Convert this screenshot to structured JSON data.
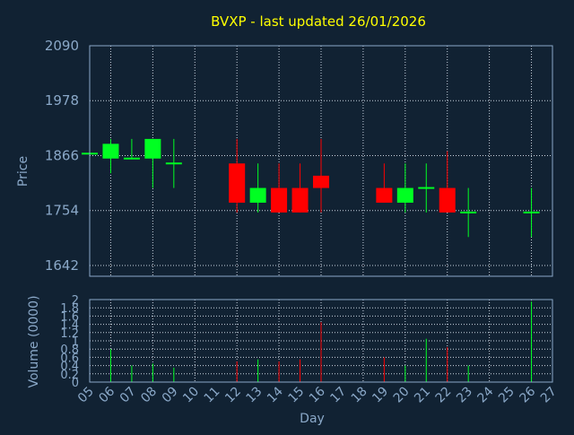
{
  "chart_data": {
    "type": "candlestick",
    "title": "BVXP - last updated 26/01/2026",
    "xlabel": "Day",
    "ylabel": "Price",
    "volume_label": "Volume (0000)",
    "grid": true,
    "colors": {
      "up": "#00ff22",
      "down": "#ff0000",
      "background": "#112233",
      "title": "#ffff00",
      "text": "#8aa8c8"
    },
    "price_ylim": [
      1620,
      2090
    ],
    "price_ticks": [
      1642,
      1754,
      1866,
      1978,
      2090
    ],
    "volume_ylim": [
      0,
      2
    ],
    "volume_ticks": [
      "0",
      "0.2",
      "0.4",
      "0.6",
      "0.8",
      "1",
      "1.2",
      "1.4",
      "1.6",
      "1.8",
      "2"
    ],
    "x_ticks": [
      "05",
      "06",
      "07",
      "08",
      "09",
      "10",
      "11",
      "12",
      "13",
      "14",
      "15",
      "16",
      "17",
      "18",
      "19",
      "20",
      "21",
      "22",
      "23",
      "24",
      "25",
      "26",
      "27"
    ],
    "candles": [
      {
        "day": "05",
        "open": 1870,
        "high": 1870,
        "low": 1870,
        "close": 1870,
        "volume": 0
      },
      {
        "day": "06",
        "open": 1860,
        "high": 1900,
        "low": 1830,
        "close": 1890,
        "volume": 0.8
      },
      {
        "day": "07",
        "open": 1860,
        "high": 1900,
        "low": 1860,
        "close": 1860,
        "volume": 0.4
      },
      {
        "day": "08",
        "open": 1860,
        "high": 1900,
        "low": 1800,
        "close": 1900,
        "volume": 0.45
      },
      {
        "day": "09",
        "open": 1850,
        "high": 1900,
        "low": 1800,
        "close": 1850,
        "volume": 0.35
      },
      {
        "day": "12",
        "open": 1850,
        "high": 1900,
        "low": 1750,
        "close": 1770,
        "volume": 0.5
      },
      {
        "day": "13",
        "open": 1770,
        "high": 1850,
        "low": 1750,
        "close": 1800,
        "volume": 0.55
      },
      {
        "day": "14",
        "open": 1800,
        "high": 1850,
        "low": 1750,
        "close": 1750,
        "volume": 0.5
      },
      {
        "day": "15",
        "open": 1800,
        "high": 1850,
        "low": 1750,
        "close": 1750,
        "volume": 0.55
      },
      {
        "day": "16",
        "open": 1825,
        "high": 1900,
        "low": 1750,
        "close": 1800,
        "volume": 1.45
      },
      {
        "day": "19",
        "open": 1800,
        "high": 1850,
        "low": 1770,
        "close": 1770,
        "volume": 0.6
      },
      {
        "day": "20",
        "open": 1770,
        "high": 1850,
        "low": 1750,
        "close": 1800,
        "volume": 0.4
      },
      {
        "day": "21",
        "open": 1800,
        "high": 1850,
        "low": 1750,
        "close": 1800,
        "volume": 1.05
      },
      {
        "day": "22",
        "open": 1800,
        "high": 1875,
        "low": 1750,
        "close": 1750,
        "volume": 0.85
      },
      {
        "day": "23",
        "open": 1750,
        "high": 1800,
        "low": 1700,
        "close": 1750,
        "volume": 0.4
      },
      {
        "day": "26",
        "open": 1750,
        "high": 1800,
        "low": 1700,
        "close": 1750,
        "volume": 1.95
      }
    ]
  }
}
